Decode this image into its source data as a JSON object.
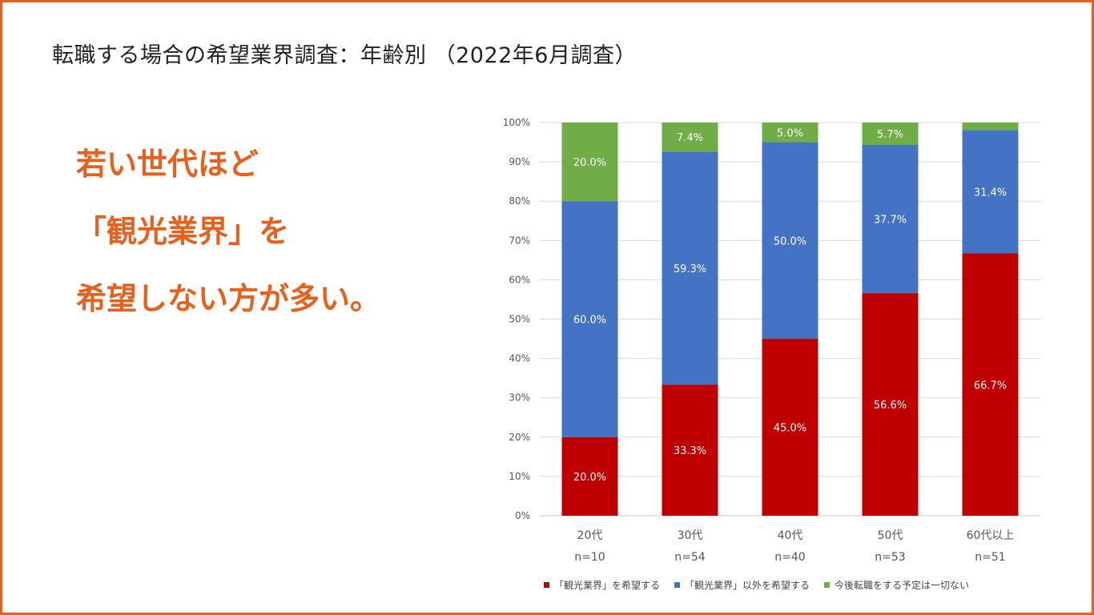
{
  "slide": {
    "title": "転職する場合の希望業界調査：年齢別 （2022年6月調査）",
    "message_lines": [
      "若い世代ほど",
      "「観光業界」を",
      "希望しない方が多い。"
    ],
    "accent_color": "#e8601c"
  },
  "chart_data": {
    "type": "bar",
    "stacked": true,
    "percent_stacked": true,
    "categories": [
      "20代",
      "30代",
      "40代",
      "50代",
      "60代以上"
    ],
    "sample_sizes": [
      "n=10",
      "n=54",
      "n=40",
      "n=53",
      "n=51"
    ],
    "series": [
      {
        "name": "「観光業界」を希望する",
        "color": "#c00000",
        "values": [
          20.0,
          33.3,
          45.0,
          56.6,
          66.7
        ],
        "labels": [
          "20.0%",
          "33.3%",
          "45.0%",
          "56.6%",
          "66.7%"
        ]
      },
      {
        "name": "「観光業界」以外を希望する",
        "color": "#4472c4",
        "values": [
          60.0,
          59.3,
          50.0,
          37.7,
          31.4
        ],
        "labels": [
          "60.0%",
          "59.3%",
          "50.0%",
          "37.7%",
          "31.4%"
        ]
      },
      {
        "name": "今後転職をする予定は一切ない",
        "color": "#70ad47",
        "values": [
          20.0,
          7.4,
          5.0,
          5.7,
          1.9
        ],
        "labels": [
          "20.0%",
          "7.4%",
          "5.0%",
          "5.7%",
          ""
        ]
      }
    ],
    "ylim": [
      0,
      100
    ],
    "y_ticks": [
      "0%",
      "10%",
      "20%",
      "30%",
      "40%",
      "50%",
      "60%",
      "70%",
      "80%",
      "90%",
      "100%"
    ],
    "grid": true,
    "legend_position": "bottom"
  }
}
